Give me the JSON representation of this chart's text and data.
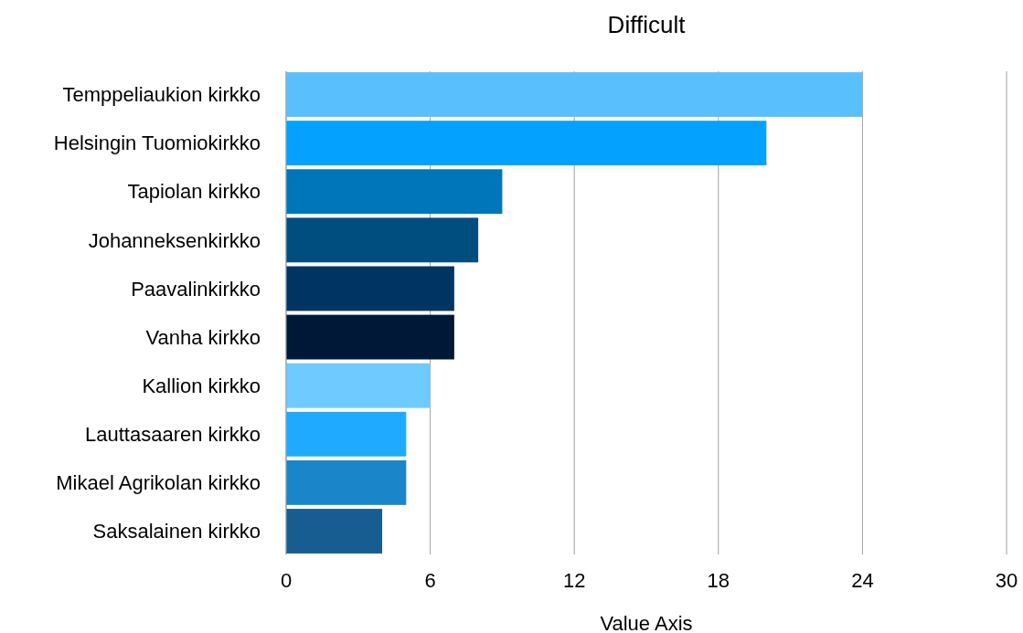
{
  "chart_data": {
    "type": "bar",
    "orientation": "horizontal",
    "title": "Difficult",
    "xlabel": "Value Axis",
    "categories": [
      "Temppeliaukion kirkko",
      "Helsingin Tuomiokirkko",
      "Tapiolan kirkko",
      "Johanneksenkirkko",
      "Paavalinkirkko",
      "Vanha kirkko",
      "Kallion kirkko",
      "Lauttasaaren kirkko",
      "Mikael Agrikolan kirkko",
      "Saksalainen kirkko"
    ],
    "values": [
      24,
      20,
      9,
      8,
      7,
      7,
      6,
      5,
      5,
      4
    ],
    "colors": [
      "#5ac0fd",
      "#04a2fe",
      "#0076ba",
      "#004d80",
      "#003462",
      "#001838",
      "#6fcaff",
      "#20aaff",
      "#1a85c8",
      "#175d91"
    ],
    "xlim": [
      0,
      30
    ],
    "xticks": [
      0,
      6,
      12,
      18,
      24,
      30
    ],
    "grid": "x"
  }
}
